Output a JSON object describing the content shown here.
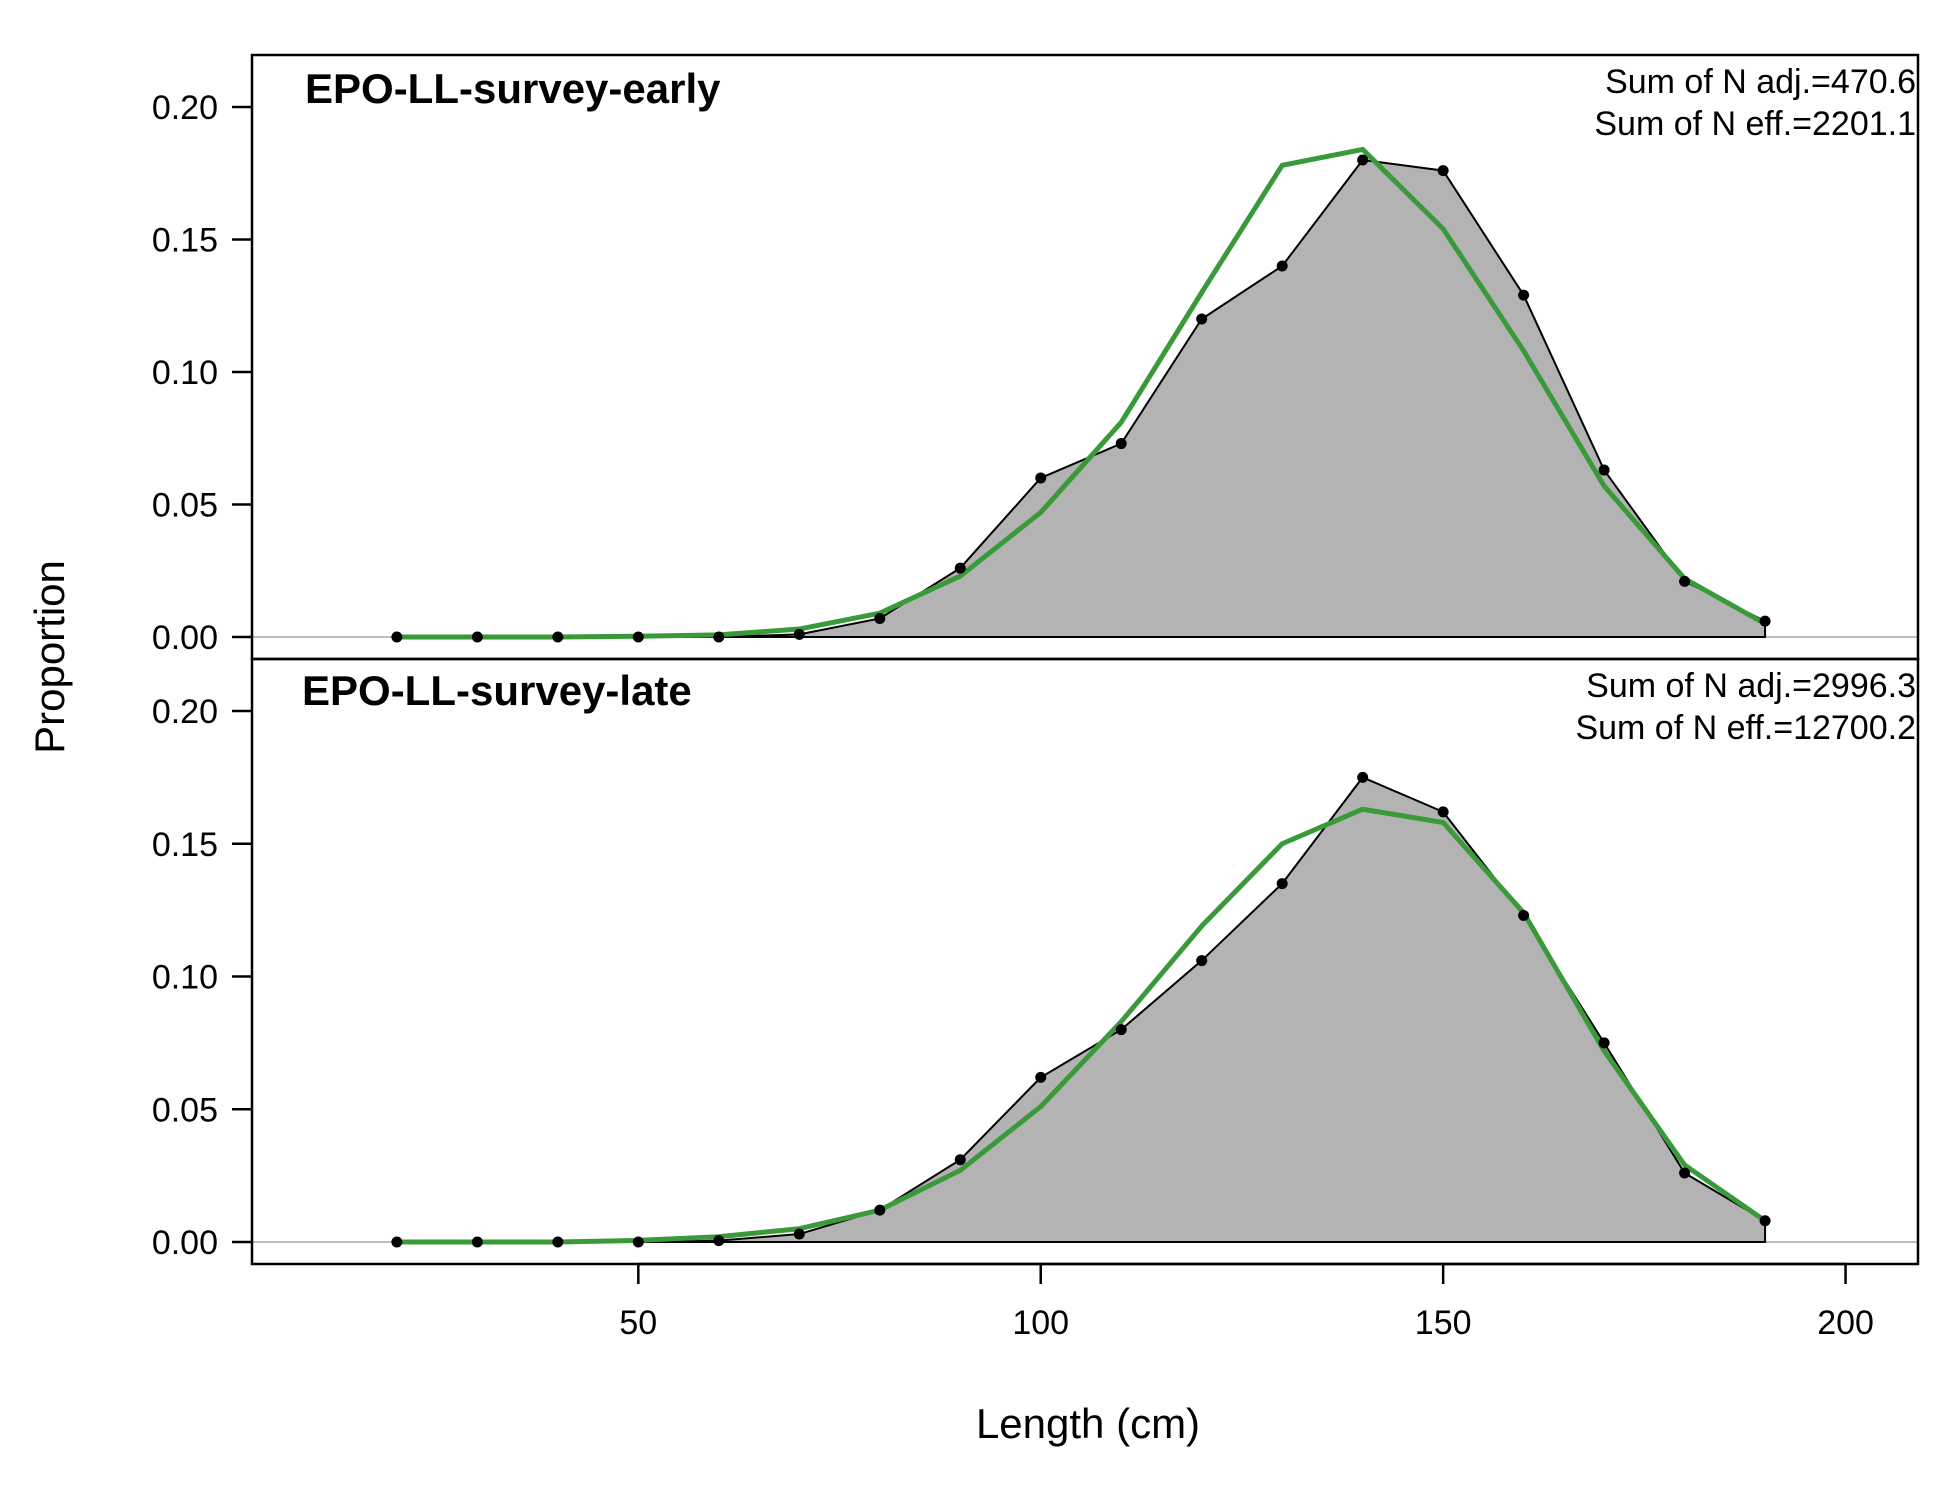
{
  "chart_data": {
    "type": "area",
    "xlabel": "Length (cm)",
    "ylabel": "Proportion",
    "xlim": [
      2,
      209
    ],
    "ylim": [
      -0.01,
      0.22
    ],
    "x_ticks": [
      50,
      100,
      150,
      200
    ],
    "y_ticks": [
      0.0,
      0.05,
      0.1,
      0.15,
      0.2
    ],
    "x_tick_labels": [
      "50",
      "100",
      "150",
      "200"
    ],
    "y_tick_labels": [
      "0.00",
      "0.05",
      "0.10",
      "0.15",
      "0.20"
    ],
    "colors": {
      "observed_fill": "#b3b3b3",
      "observed_line": "#000000",
      "expected_line": "#3a9a3a",
      "baseline": "#bdbdbd"
    },
    "panels": [
      {
        "title": "EPO-LL-survey-early",
        "annotations": [
          "Sum of N adj.=470.6",
          "Sum of N eff.=2201.1"
        ],
        "x": [
          20,
          30,
          40,
          50,
          60,
          70,
          80,
          90,
          100,
          110,
          120,
          130,
          140,
          150,
          160,
          170,
          180,
          190
        ],
        "series": [
          {
            "values": [
              0.0,
              0.0,
              0.0,
              0.0,
              0.0,
              0.001,
              0.007,
              0.026,
              0.06,
              0.073,
              0.12,
              0.14,
              0.18,
              0.176,
              0.129,
              0.063,
              0.021,
              0.006
            ]
          },
          {
            "values": [
              0.0,
              0.0,
              0.0,
              0.0003,
              0.0008,
              0.003,
              0.009,
              0.023,
              0.047,
              0.081,
              0.13,
              0.178,
              0.184,
              0.154,
              0.108,
              0.057,
              0.022,
              0.005
            ]
          }
        ]
      },
      {
        "title": "EPO-LL-survey-late",
        "annotations": [
          "Sum of N adj.=2996.3",
          "Sum of N eff.=12700.2"
        ],
        "x": [
          20,
          30,
          40,
          50,
          60,
          70,
          80,
          90,
          100,
          110,
          120,
          130,
          140,
          150,
          160,
          170,
          180,
          190
        ],
        "series": [
          {
            "values": [
              0.0,
              0.0,
              0.0,
              0.0,
              0.0005,
              0.003,
              0.012,
              0.031,
              0.062,
              0.08,
              0.106,
              0.135,
              0.175,
              0.162,
              0.123,
              0.075,
              0.026,
              0.008
            ]
          },
          {
            "values": [
              0.0,
              0.0,
              0.0,
              0.0006,
              0.002,
              0.005,
              0.012,
              0.027,
              0.051,
              0.083,
              0.119,
              0.15,
              0.163,
              0.158,
              0.124,
              0.072,
              0.029,
              0.008
            ]
          }
        ]
      }
    ]
  }
}
